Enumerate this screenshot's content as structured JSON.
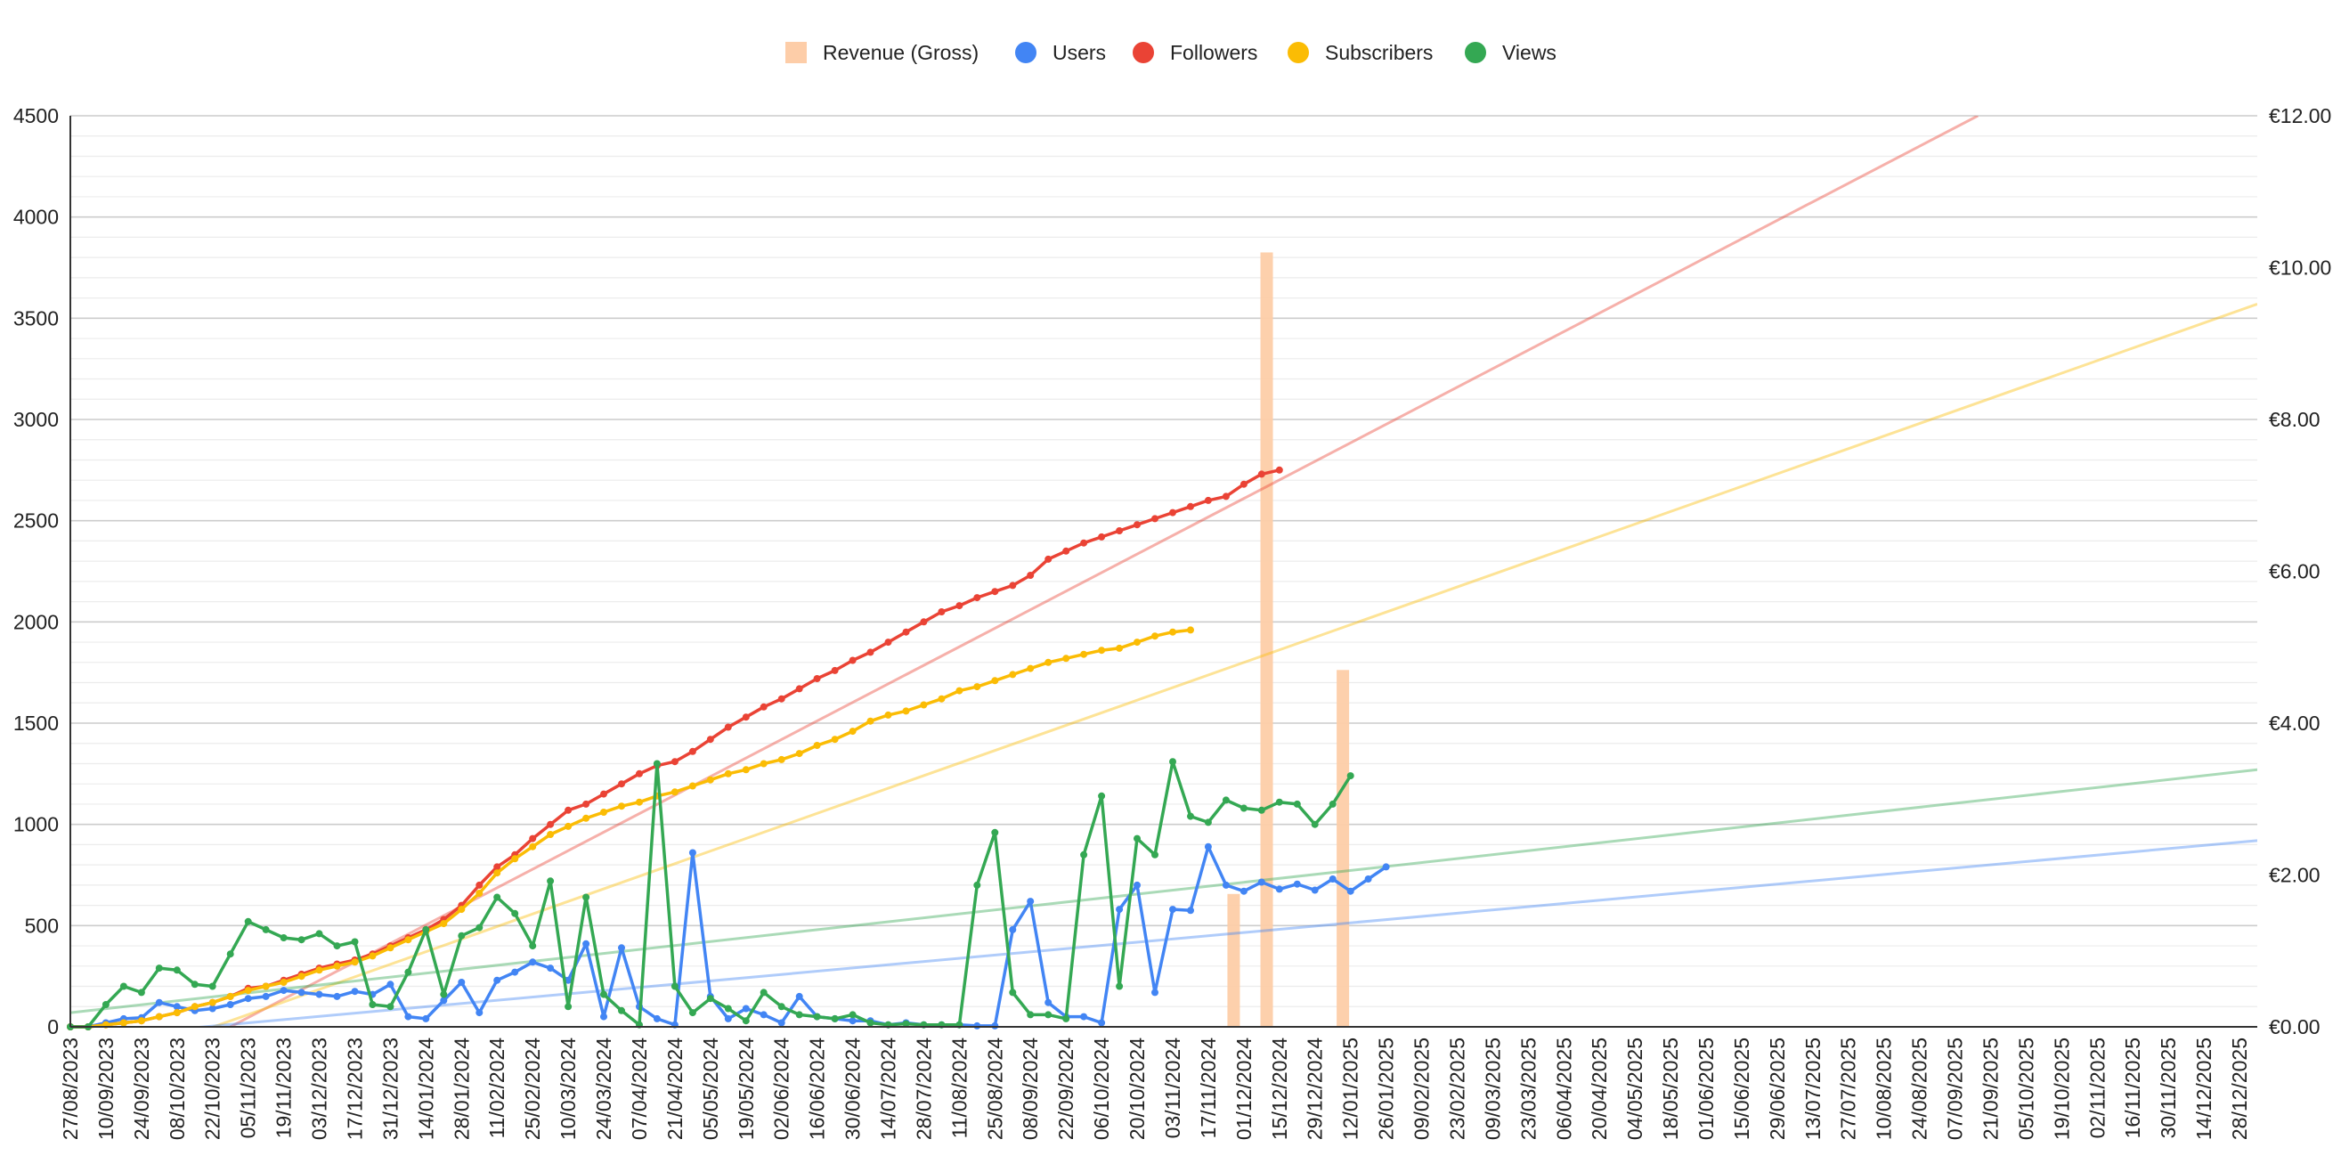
{
  "chart_data": {
    "type": "line",
    "legend_position": "top",
    "grid": true,
    "y_left": {
      "min": 0,
      "max": 4500,
      "ticks": [
        "0",
        "500",
        "1000",
        "1500",
        "2000",
        "2500",
        "3000",
        "3500",
        "4000",
        "4500"
      ]
    },
    "y_right": {
      "min": 0,
      "max": 12,
      "ticks": [
        "€0.00",
        "€2.00",
        "€4.00",
        "€6.00",
        "€8.00",
        "€10.00",
        "€12.00"
      ]
    },
    "x_range": [
      "27/08/2023",
      "04/01/2026"
    ],
    "x_ticks": [
      "27/08/2023",
      "10/09/2023",
      "24/09/2023",
      "08/10/2023",
      "22/10/2023",
      "05/11/2023",
      "19/11/2023",
      "03/12/2023",
      "17/12/2023",
      "31/12/2023",
      "14/01/2024",
      "28/01/2024",
      "11/02/2024",
      "25/02/2024",
      "10/03/2024",
      "24/03/2024",
      "07/04/2024",
      "21/04/2024",
      "05/05/2024",
      "19/05/2024",
      "02/06/2024",
      "16/06/2024",
      "30/06/2024",
      "14/07/2024",
      "28/07/2024",
      "11/08/2024",
      "25/08/2024",
      "08/09/2024",
      "22/09/2024",
      "06/10/2024",
      "20/10/2024",
      "03/11/2024",
      "17/11/2024",
      "01/12/2024",
      "15/12/2024",
      "29/12/2024",
      "12/01/2025",
      "26/01/2025",
      "09/02/2025",
      "23/02/2025",
      "09/03/2025",
      "23/03/2025",
      "06/04/2025",
      "20/04/2025",
      "04/05/2025",
      "18/05/2025",
      "01/06/2025",
      "15/06/2025",
      "29/06/2025",
      "13/07/2025",
      "27/07/2025",
      "10/08/2025",
      "24/08/2025",
      "07/09/2025",
      "21/09/2025",
      "05/10/2025",
      "19/10/2025",
      "02/11/2025",
      "16/11/2025",
      "30/11/2025",
      "14/12/2025",
      "28/12/2025"
    ],
    "legend": [
      {
        "name": "Revenue (Gross)",
        "color": "#FDCDA8",
        "shape": "square"
      },
      {
        "name": "Users",
        "color": "#4285F4",
        "shape": "circle"
      },
      {
        "name": "Followers",
        "color": "#EA4335",
        "shape": "circle"
      },
      {
        "name": "Subscribers",
        "color": "#FBBC04",
        "shape": "circle"
      },
      {
        "name": "Views",
        "color": "#34A853",
        "shape": "circle"
      }
    ],
    "series": [
      {
        "name": "Revenue (Gross)",
        "axis": "right",
        "type": "bar",
        "color": "#FDCDA8",
        "x": [
          "27/11/2024",
          "10/12/2024",
          "09/01/2025"
        ],
        "values": [
          1.75,
          10.2,
          4.7
        ]
      },
      {
        "name": "Users",
        "axis": "left",
        "type": "line",
        "color": "#4285F4",
        "values": [
          0,
          0,
          20,
          40,
          45,
          120,
          100,
          80,
          90,
          110,
          140,
          150,
          180,
          170,
          160,
          150,
          175,
          160,
          210,
          50,
          40,
          130,
          220,
          70,
          230,
          270,
          320,
          290,
          230,
          410,
          50,
          390,
          100,
          40,
          10,
          860,
          150,
          40,
          90,
          60,
          20,
          150,
          50,
          40,
          30,
          30,
          10,
          20,
          10,
          10,
          10,
          5,
          5,
          480,
          620,
          120,
          50,
          50,
          20,
          580,
          700,
          170,
          580,
          575,
          890,
          700,
          670,
          715,
          680,
          705,
          675,
          730,
          670,
          730,
          790
        ]
      },
      {
        "name": "Followers",
        "axis": "left",
        "type": "line",
        "color": "#EA4335",
        "values": [
          0,
          0,
          10,
          20,
          30,
          50,
          70,
          100,
          120,
          150,
          190,
          200,
          230,
          260,
          290,
          310,
          330,
          360,
          400,
          440,
          480,
          530,
          600,
          700,
          790,
          850,
          930,
          1000,
          1070,
          1100,
          1150,
          1200,
          1250,
          1290,
          1310,
          1360,
          1420,
          1480,
          1530,
          1580,
          1620,
          1670,
          1720,
          1760,
          1810,
          1850,
          1900,
          1950,
          2000,
          2050,
          2080,
          2120,
          2150,
          2180,
          2230,
          2310,
          2350,
          2390,
          2420,
          2450,
          2480,
          2510,
          2540,
          2570,
          2600,
          2620,
          2680,
          2730,
          2750
        ]
      },
      {
        "name": "Subscribers",
        "axis": "left",
        "type": "line",
        "color": "#FBBC04",
        "values": [
          0,
          0,
          10,
          20,
          30,
          50,
          70,
          100,
          120,
          150,
          180,
          200,
          220,
          250,
          280,
          300,
          320,
          350,
          390,
          430,
          470,
          510,
          580,
          660,
          760,
          830,
          890,
          950,
          990,
          1030,
          1060,
          1090,
          1110,
          1140,
          1160,
          1190,
          1220,
          1250,
          1270,
          1300,
          1320,
          1350,
          1390,
          1420,
          1460,
          1510,
          1540,
          1560,
          1590,
          1620,
          1660,
          1680,
          1710,
          1740,
          1770,
          1800,
          1820,
          1840,
          1860,
          1870,
          1900,
          1930,
          1950,
          1960
        ]
      },
      {
        "name": "Views",
        "axis": "left",
        "type": "line",
        "color": "#34A853",
        "values": [
          0,
          0,
          110,
          200,
          170,
          290,
          280,
          210,
          200,
          360,
          520,
          480,
          440,
          430,
          460,
          400,
          420,
          110,
          100,
          270,
          480,
          160,
          450,
          490,
          640,
          560,
          400,
          720,
          100,
          640,
          160,
          80,
          10,
          1300,
          200,
          70,
          140,
          90,
          30,
          170,
          100,
          60,
          50,
          40,
          60,
          20,
          10,
          15,
          10,
          10,
          10,
          700,
          960,
          170,
          60,
          60,
          40,
          850,
          1140,
          200,
          930,
          850,
          1310,
          1040,
          1010,
          1120,
          1080,
          1070,
          1110,
          1100,
          1000,
          1100,
          1240
        ]
      },
      {
        "name": "Followers",
        "kind": "trendline",
        "axis": "left",
        "color": "#EA4335",
        "x": [
          "29/10/2023",
          "16/09/2025"
        ],
        "values": [
          0,
          4500
        ]
      },
      {
        "name": "Subscribers",
        "kind": "trendline",
        "axis": "left",
        "color": "#FBBC04",
        "x": [
          "27/08/2023",
          "04/01/2026"
        ],
        "values": [
          -250,
          3570
        ]
      },
      {
        "name": "Views",
        "kind": "trendline",
        "axis": "left",
        "color": "#34A853",
        "x": [
          "27/08/2023",
          "04/01/2026"
        ],
        "values": [
          70,
          1270
        ]
      },
      {
        "name": "Users",
        "kind": "trendline",
        "axis": "left",
        "color": "#4285F4",
        "x": [
          "27/08/2023",
          "04/01/2026"
        ],
        "values": [
          -60,
          920
        ]
      }
    ]
  }
}
